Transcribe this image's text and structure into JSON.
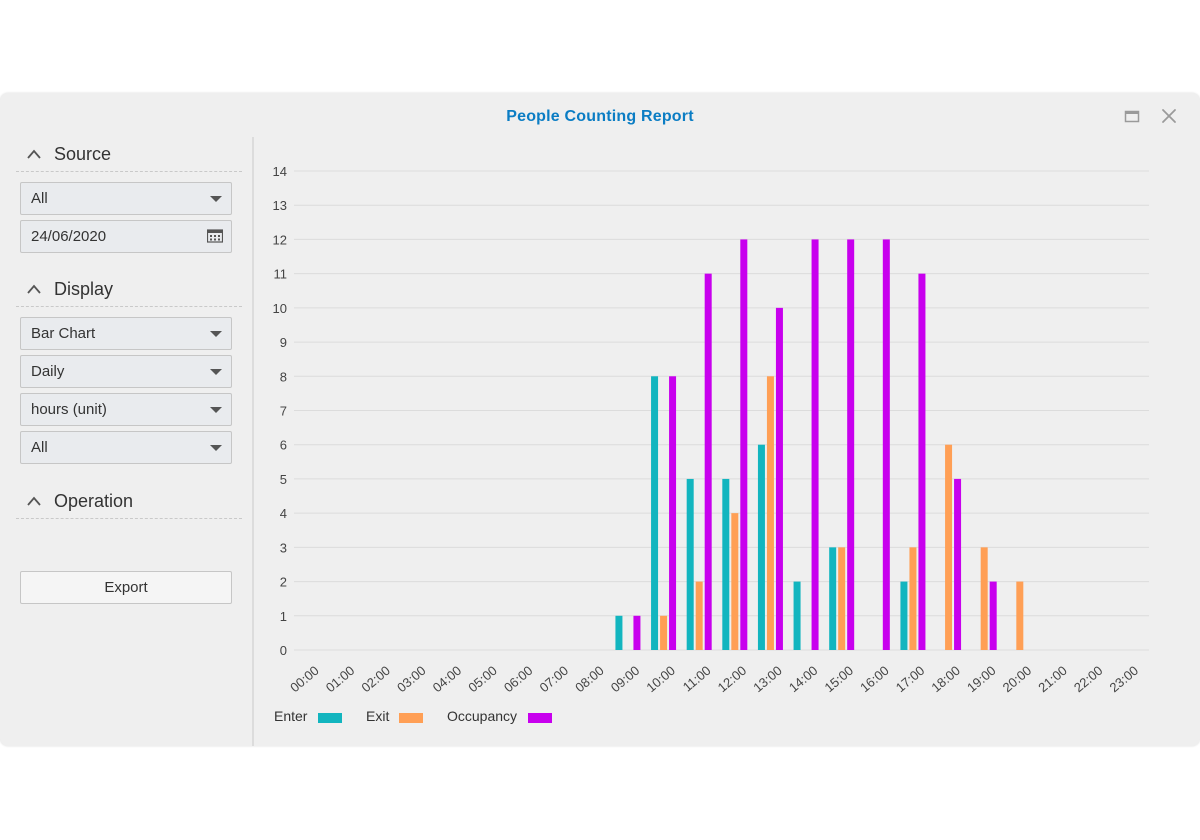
{
  "window": {
    "title": "People Counting Report",
    "buttons": {
      "maximize_icon": "maximize-icon",
      "close_icon": "close-icon"
    }
  },
  "sidebar": {
    "source": {
      "label": "Source",
      "camera_select": "All",
      "date_value": "24/06/2020"
    },
    "display": {
      "label": "Display",
      "chart_type": "Bar Chart",
      "period": "Daily",
      "unit": "hours (unit)",
      "filter": "All"
    },
    "operation": {
      "label": "Operation",
      "export_label": "Export"
    }
  },
  "colors": {
    "enter": "#12b5bf",
    "exit": "#ff9f55",
    "occupancy": "#c800ee",
    "title": "#0b7dc4"
  },
  "chart_data": {
    "type": "bar",
    "title": "",
    "xlabel": "",
    "ylabel": "",
    "ylim": [
      0,
      14
    ],
    "yticks": [
      0,
      1,
      2,
      3,
      4,
      5,
      6,
      7,
      8,
      9,
      10,
      11,
      12,
      13,
      14
    ],
    "categories": [
      "00:00",
      "01:00",
      "02:00",
      "03:00",
      "04:00",
      "05:00",
      "06:00",
      "07:00",
      "08:00",
      "09:00",
      "10:00",
      "11:00",
      "12:00",
      "13:00",
      "14:00",
      "15:00",
      "16:00",
      "17:00",
      "18:00",
      "19:00",
      "20:00",
      "21:00",
      "22:00",
      "23:00"
    ],
    "series": [
      {
        "name": "Enter",
        "color": "#12b5bf",
        "values": [
          0,
          0,
          0,
          0,
          0,
          0,
          0,
          0,
          0,
          1,
          8,
          5,
          5,
          6,
          2,
          3,
          0,
          2,
          0,
          0,
          0,
          0,
          0,
          0
        ]
      },
      {
        "name": "Exit",
        "color": "#ff9f55",
        "values": [
          0,
          0,
          0,
          0,
          0,
          0,
          0,
          0,
          0,
          0,
          1,
          2,
          4,
          8,
          0,
          3,
          0,
          3,
          6,
          3,
          2,
          0,
          0,
          0
        ]
      },
      {
        "name": "Occupancy",
        "color": "#c800ee",
        "values": [
          0,
          0,
          0,
          0,
          0,
          0,
          0,
          0,
          0,
          1,
          8,
          11,
          12,
          10,
          12,
          12,
          12,
          11,
          5,
          2,
          0,
          0,
          0,
          0
        ]
      }
    ],
    "legend_position": "bottom-left",
    "grid": true
  }
}
